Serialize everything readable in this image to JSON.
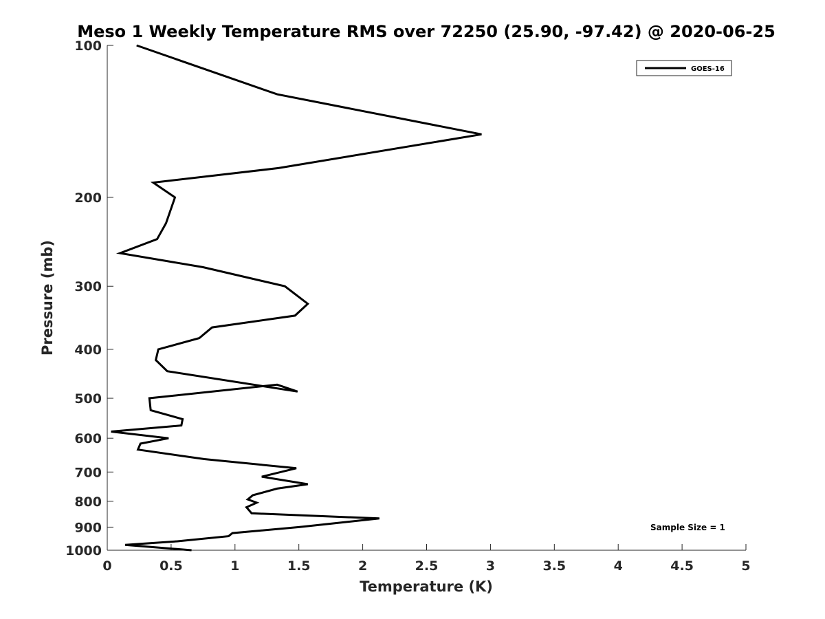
{
  "chart_data": {
    "type": "line",
    "title": "Meso 1 Weekly Temperature RMS over 72250 (25.90, -97.42) @ 2020-06-25",
    "xlabel": "Temperature (K)",
    "ylabel": "Pressure (mb)",
    "xlim": [
      0,
      5
    ],
    "ylim": [
      100,
      1000
    ],
    "y_scale": "log",
    "y_reversed": true,
    "grid": false,
    "legend_position": "top-right",
    "xticks": [
      0,
      0.5,
      1,
      1.5,
      2,
      2.5,
      3,
      3.5,
      4,
      4.5,
      5
    ],
    "xtick_labels": [
      "0",
      "0.5",
      "1",
      "1.5",
      "2",
      "2.5",
      "3",
      "3.5",
      "4",
      "4.5",
      "5"
    ],
    "yticks": [
      100,
      200,
      300,
      400,
      500,
      600,
      700,
      800,
      900,
      1000
    ],
    "ytick_labels": [
      "100",
      "200",
      "300",
      "400",
      "500",
      "600",
      "700",
      "800",
      "900",
      "1000"
    ],
    "series": [
      {
        "name": "GOES-16",
        "color": "#000000",
        "points": [
          [
            0.23,
            100
          ],
          [
            1.33,
            125
          ],
          [
            2.93,
            150
          ],
          [
            1.34,
            175
          ],
          [
            0.36,
            187
          ],
          [
            0.53,
            200
          ],
          [
            0.46,
            225
          ],
          [
            0.39,
            242
          ],
          [
            0.1,
            258
          ],
          [
            0.75,
            275
          ],
          [
            1.39,
            300
          ],
          [
            1.57,
            325
          ],
          [
            1.47,
            343
          ],
          [
            0.82,
            362
          ],
          [
            0.72,
            380
          ],
          [
            0.4,
            400
          ],
          [
            0.38,
            420
          ],
          [
            0.47,
            442
          ],
          [
            1.49,
            485
          ],
          [
            1.33,
            470
          ],
          [
            0.33,
            500
          ],
          [
            0.34,
            528
          ],
          [
            0.59,
            550
          ],
          [
            0.58,
            566
          ],
          [
            0.03,
            582
          ],
          [
            0.48,
            600
          ],
          [
            0.26,
            615
          ],
          [
            0.24,
            632
          ],
          [
            0.76,
            660
          ],
          [
            1.48,
            688
          ],
          [
            1.21,
            715
          ],
          [
            1.57,
            740
          ],
          [
            1.33,
            755
          ],
          [
            1.14,
            778
          ],
          [
            1.1,
            793
          ],
          [
            1.17,
            805
          ],
          [
            1.09,
            822
          ],
          [
            1.13,
            845
          ],
          [
            2.13,
            865
          ],
          [
            1.5,
            900
          ],
          [
            0.98,
            925
          ],
          [
            0.95,
            938
          ],
          [
            0.55,
            960
          ],
          [
            0.14,
            976
          ],
          [
            0.66,
            1000
          ]
        ]
      }
    ],
    "annotation": "Sample Size = 1"
  }
}
